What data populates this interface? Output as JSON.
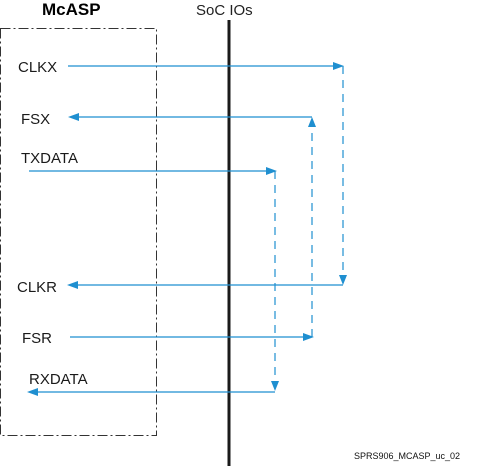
{
  "titles": {
    "mcasp": "McASP",
    "soc_ios": "SoC IOs"
  },
  "signals": {
    "clkx": "CLKX",
    "fsx": "FSX",
    "txdata": "TXDATA",
    "clkr": "CLKR",
    "fsr": "FSR",
    "rxdata": "RXDATA"
  },
  "caption": "SPRS906_MCASP_uc_02",
  "colors": {
    "wire": "#1f8fd0",
    "box_border": "#333333",
    "io_bar": "#1a1a1a"
  }
}
